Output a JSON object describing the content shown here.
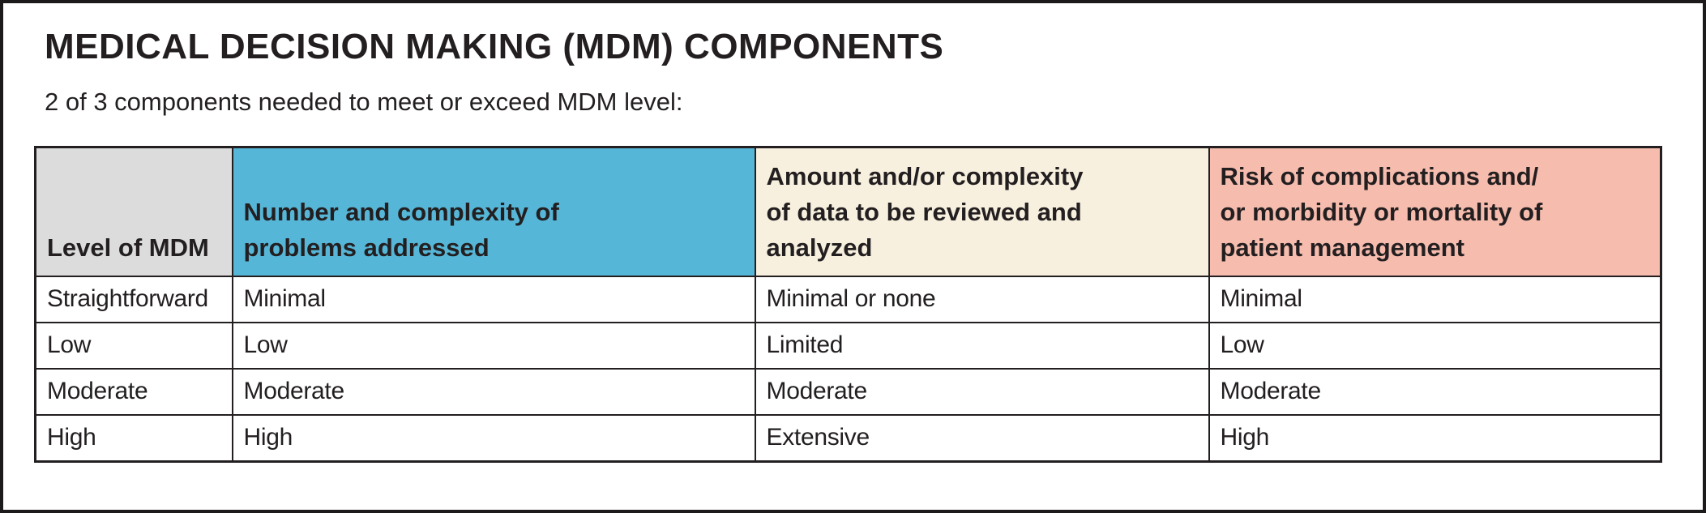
{
  "title": "MEDICAL DECISION MAKING (MDM) COMPONENTS",
  "subtitle": "2 of 3 components needed to meet or exceed MDM level:",
  "colors": {
    "ink": "#231f20",
    "border": "#231f20",
    "card_background": "#ffffff",
    "header_gray": "#dcdcdc",
    "header_blue": "#56b6d7",
    "header_cream": "#f7f0df",
    "header_pink": "#f6bcae"
  },
  "table": {
    "columns": [
      {
        "id": "level-of-mdm",
        "label": "Level of MDM",
        "bg": "#dcdcdc"
      },
      {
        "id": "problems-addressed",
        "label": "Number and complexity of\nproblems addressed",
        "bg": "#56b6d7"
      },
      {
        "id": "data-reviewed",
        "label": "Amount and/or complexity\nof data to be reviewed and\nanalyzed",
        "bg": "#f7f0df"
      },
      {
        "id": "risk",
        "label": "Risk of complications and/\nor morbidity or mortality of\npatient management",
        "bg": "#f6bcae"
      }
    ],
    "rows": [
      {
        "cells": [
          "Straightforward",
          "Minimal",
          "Minimal or none",
          "Minimal"
        ]
      },
      {
        "cells": [
          "Low",
          "Low",
          "Limited",
          "Low"
        ]
      },
      {
        "cells": [
          "Moderate",
          "Moderate",
          "Moderate",
          "Moderate"
        ]
      },
      {
        "cells": [
          "High",
          "High",
          "Extensive",
          "High"
        ]
      }
    ]
  }
}
